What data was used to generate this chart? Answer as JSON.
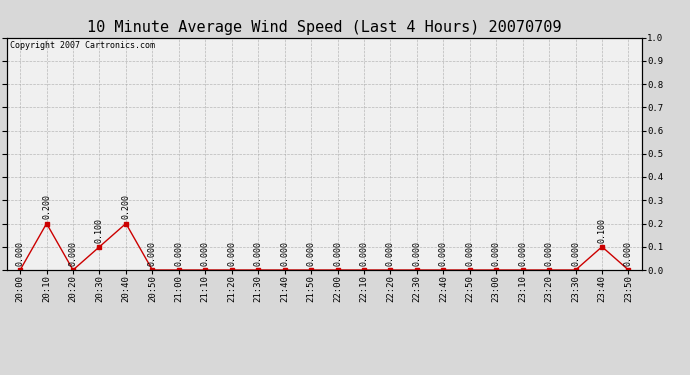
{
  "title": "10 Minute Average Wind Speed (Last 4 Hours) 20070709",
  "copyright": "Copyright 2007 Cartronics.com",
  "x_labels": [
    "20:00",
    "20:10",
    "20:20",
    "20:30",
    "20:40",
    "20:50",
    "21:00",
    "21:10",
    "21:20",
    "21:30",
    "21:40",
    "21:50",
    "22:00",
    "22:10",
    "22:20",
    "22:30",
    "22:40",
    "22:50",
    "23:00",
    "23:10",
    "23:20",
    "23:30",
    "23:40",
    "23:50"
  ],
  "y_values": [
    0.0,
    0.2,
    0.0,
    0.1,
    0.2,
    0.0,
    0.0,
    0.0,
    0.0,
    0.0,
    0.0,
    0.0,
    0.0,
    0.0,
    0.0,
    0.0,
    0.0,
    0.0,
    0.0,
    0.0,
    0.0,
    0.0,
    0.1,
    0.0
  ],
  "ylim": [
    0.0,
    1.0
  ],
  "yticks": [
    0.0,
    0.1,
    0.2,
    0.3,
    0.4,
    0.5,
    0.6,
    0.7,
    0.8,
    0.9,
    1.0
  ],
  "line_color": "#cc0000",
  "marker": "s",
  "marker_size": 2.5,
  "bg_color": "#d8d8d8",
  "plot_bg_color": "#f0f0f0",
  "grid_color": "#aaaaaa",
  "title_fontsize": 11,
  "annotation_fontsize": 6,
  "tick_fontsize": 6.5,
  "copyright_fontsize": 6
}
